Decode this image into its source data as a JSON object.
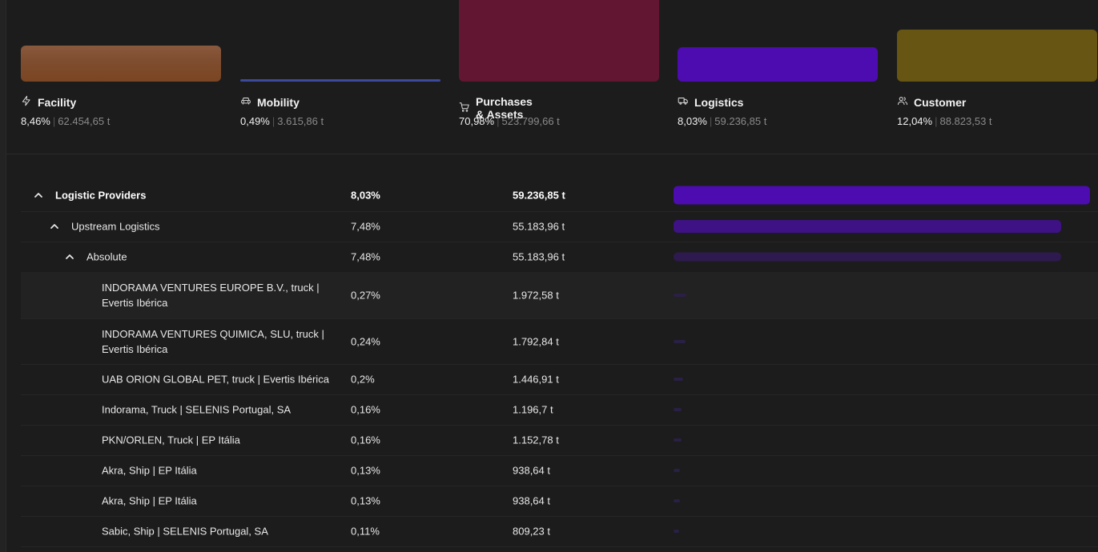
{
  "colors": {
    "facility": "#7a4522",
    "mobility": "#3b4a9c",
    "purchases": "#621632",
    "logistics": "#4d0cb0",
    "customer": "#675513"
  },
  "categories": [
    {
      "id": "facility",
      "icon": "lightning-icon",
      "label": "Facility",
      "pct": "8,46%",
      "tons": "62.454,65 t"
    },
    {
      "id": "mobility",
      "icon": "car-icon",
      "label": "Mobility",
      "pct": "0,49%",
      "tons": "3.615,86 t"
    },
    {
      "id": "purchases",
      "icon": "cart-icon",
      "label": "Purchases & Assets",
      "pct": "70,98%",
      "tons": "523.799,66 t"
    },
    {
      "id": "logistics",
      "icon": "truck-icon",
      "label": "Logistics",
      "pct": "8,03%",
      "tons": "59.236,85 t"
    },
    {
      "id": "customer",
      "icon": "users-icon",
      "label": "Customer",
      "pct": "12,04%",
      "tons": "88.823,53 t"
    }
  ],
  "table": {
    "rows": [
      {
        "name": "Logistic Providers",
        "pct": "8,03%",
        "tons": "59.236,85 t",
        "expanded": true
      },
      {
        "name": "Upstream Logistics",
        "pct": "7,48%",
        "tons": "55.183,96 t",
        "expanded": true
      },
      {
        "name": "Absolute",
        "pct": "7,48%",
        "tons": "55.183,96 t",
        "expanded": true
      },
      {
        "name_line1": "INDORAMA VENTURES EUROPE B.V., truck |",
        "name_line2": "Evertis Ibérica",
        "pct": "0,27%",
        "tons": "1.972,58 t"
      },
      {
        "name_line1": "INDORAMA VENTURES QUIMICA, SLU, truck |",
        "name_line2": "Evertis Ibérica",
        "pct": "0,24%",
        "tons": "1.792,84 t"
      },
      {
        "name": "UAB ORION GLOBAL PET, truck | Evertis Ibérica",
        "pct": "0,2%",
        "tons": "1.446,91 t"
      },
      {
        "name": "Indorama, Truck | SELENIS Portugal, SA",
        "pct": "0,16%",
        "tons": "1.196,7 t"
      },
      {
        "name": "PKN/ORLEN, Truck | EP Itália",
        "pct": "0,16%",
        "tons": "1.152,78 t"
      },
      {
        "name": "Akra, Ship | EP Itália",
        "pct": "0,13%",
        "tons": "938,64 t"
      },
      {
        "name": "Akra, Ship | EP Itália",
        "pct": "0,13%",
        "tons": "938,64 t"
      },
      {
        "name": "Sabic, Ship | SELENIS Portugal, SA",
        "pct": "0,11%",
        "tons": "809,23 t"
      }
    ]
  }
}
